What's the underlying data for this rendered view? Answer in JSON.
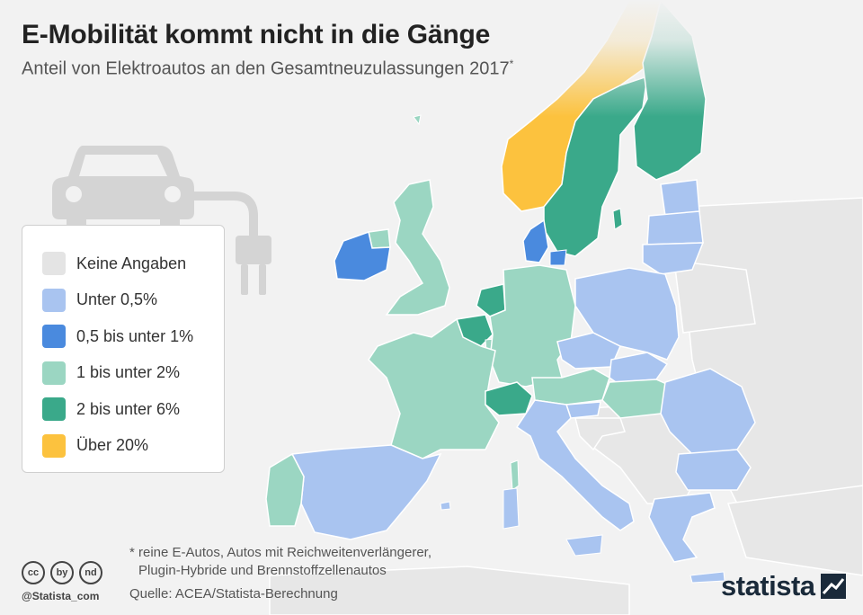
{
  "header": {
    "title": "E-Mobilität kommt nicht in die Gänge",
    "subtitle": "Anteil von Elektroautos an den Gesamtneuzulassungen 2017",
    "subtitle_mark": "*"
  },
  "legend": [
    {
      "label": "Keine Angaben",
      "color": "#e4e4e4"
    },
    {
      "label": "Unter 0,5%",
      "color": "#a9c4f0"
    },
    {
      "label": "0,5 bis unter 1%",
      "color": "#4a8ade"
    },
    {
      "label": "1 bis unter 2%",
      "color": "#9bd6c2"
    },
    {
      "label": "2 bis unter 6%",
      "color": "#3aa98a"
    },
    {
      "label": "Über 20%",
      "color": "#fcc23e"
    }
  ],
  "footer": {
    "footnote_line1": "* reine E-Autos, Autos mit Reichweitenverlängerer,",
    "footnote_line2": "Plugin-Hybride und Brennstoffzellenautos",
    "source": "Quelle: ACEA/Statista-Berechnung",
    "handle": "@Statista_com",
    "brand": "statista",
    "cc_icons": [
      "cc",
      "by",
      "nd"
    ]
  },
  "map_colors": {
    "background_land": "#e7e7e7",
    "border": "#ffffff",
    "car_icon": "#d4d4d4"
  }
}
